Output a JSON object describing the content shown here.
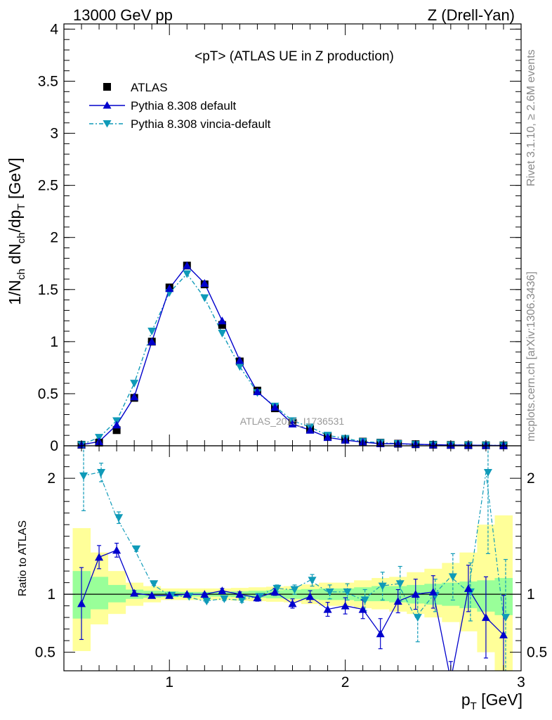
{
  "header": {
    "left": "13000 GeV pp",
    "right": "Z (Drell-Yan)"
  },
  "side_texts": {
    "rivet": "Rivet 3.1.10, ≥ 2.6M events",
    "mcplots": "mcplots.cern.ch [arXiv:1306.3436]"
  },
  "colors": {
    "atlas": "#000000",
    "default": "#0000cc",
    "vincia": "#0f9ab8",
    "band_inner": "#99ff99",
    "band_outer": "#ffff99",
    "watermark": "#999999"
  },
  "chart_data": [
    {
      "type": "line",
      "title": "<pT> (ATLAS UE in Z production)",
      "xlabel": "",
      "ylabel": "1/N_ch dN_ch/dp_T [GeV]",
      "watermark": "ATLAS_2019_I1736531",
      "xlim": [
        0.4,
        3.0
      ],
      "ylim": [
        0,
        4.05
      ],
      "yticks": [
        "0",
        "0.5",
        "1",
        "1.5",
        "2",
        "2.5",
        "3",
        "3.5",
        "4"
      ],
      "ytick_values": [
        0,
        0.5,
        1,
        1.5,
        2,
        2.5,
        3,
        3.5,
        4
      ],
      "legend_position": "top-left",
      "x": [
        0.5,
        0.6,
        0.7,
        0.8,
        0.9,
        1.0,
        1.1,
        1.2,
        1.3,
        1.4,
        1.5,
        1.6,
        1.7,
        1.8,
        1.9,
        2.0,
        2.1,
        2.2,
        2.3,
        2.4,
        2.5,
        2.6,
        2.7,
        2.8,
        2.9
      ],
      "series": [
        {
          "name": "ATLAS",
          "marker": "square",
          "values": [
            0.01,
            0.03,
            0.15,
            0.46,
            1.0,
            1.52,
            1.73,
            1.55,
            1.16,
            0.81,
            0.53,
            0.36,
            0.23,
            0.16,
            0.09,
            0.06,
            0.04,
            0.03,
            0.02,
            0.015,
            0.01,
            0.008,
            0.006,
            0.005,
            0.004
          ]
        },
        {
          "name": "Pythia 8.308 default",
          "marker": "triangle-up",
          "line": "solid",
          "values": [
            0.01,
            0.04,
            0.2,
            0.47,
            1.0,
            1.51,
            1.73,
            1.56,
            1.2,
            0.82,
            0.52,
            0.37,
            0.21,
            0.15,
            0.08,
            0.055,
            0.035,
            0.02,
            0.02,
            0.015,
            0.01,
            0.007,
            0.006,
            0.004,
            0.003
          ]
        },
        {
          "name": "Pythia 8.308 vincia-default",
          "marker": "triangle-down",
          "line": "dashdot",
          "values": [
            0.01,
            0.08,
            0.24,
            0.6,
            1.1,
            1.47,
            1.65,
            1.42,
            1.08,
            0.76,
            0.51,
            0.38,
            0.24,
            0.18,
            0.1,
            0.07,
            0.04,
            0.03,
            0.02,
            0.012,
            0.01,
            0.008,
            0.006,
            0.005,
            0.003
          ]
        }
      ]
    },
    {
      "type": "line",
      "xlabel": "p_T [GeV]",
      "ylabel": "Ratio to ATLAS",
      "xlim": [
        0.4,
        3.0
      ],
      "ylim": [
        0.34,
        2.28
      ],
      "xticks": [
        "1",
        "2",
        "3"
      ],
      "xtick_values": [
        1,
        2,
        3
      ],
      "yticks": [
        "0.5",
        "1",
        "2"
      ],
      "ytick_values": [
        0.5,
        1,
        2
      ],
      "reference_line": 1,
      "x": [
        0.5,
        0.6,
        0.7,
        0.8,
        0.9,
        1.0,
        1.1,
        1.2,
        1.3,
        1.4,
        1.5,
        1.6,
        1.7,
        1.8,
        1.9,
        2.0,
        2.1,
        2.2,
        2.3,
        2.4,
        2.5,
        2.6,
        2.7,
        2.8,
        2.9
      ],
      "bands": {
        "inner": [
          [
            0.79,
            1.2
          ],
          [
            0.87,
            1.15
          ],
          [
            0.93,
            1.08
          ],
          [
            0.96,
            1.04
          ],
          [
            0.97,
            1.03
          ],
          [
            0.975,
            1.025
          ],
          [
            0.98,
            1.02
          ],
          [
            0.98,
            1.02
          ],
          [
            0.98,
            1.02
          ],
          [
            0.975,
            1.025
          ],
          [
            0.97,
            1.03
          ],
          [
            0.965,
            1.035
          ],
          [
            0.96,
            1.04
          ],
          [
            0.955,
            1.045
          ],
          [
            0.95,
            1.05
          ],
          [
            0.95,
            1.05
          ],
          [
            0.94,
            1.06
          ],
          [
            0.94,
            1.07
          ],
          [
            0.93,
            1.07
          ],
          [
            0.92,
            1.08
          ],
          [
            0.91,
            1.09
          ],
          [
            0.9,
            1.1
          ],
          [
            0.88,
            1.11
          ],
          [
            0.85,
            1.12
          ],
          [
            0.82,
            1.14
          ]
        ],
        "outer": [
          [
            0.51,
            1.57
          ],
          [
            0.74,
            1.36
          ],
          [
            0.83,
            1.2
          ],
          [
            0.9,
            1.1
          ],
          [
            0.93,
            1.07
          ],
          [
            0.95,
            1.05
          ],
          [
            0.95,
            1.05
          ],
          [
            0.95,
            1.05
          ],
          [
            0.95,
            1.05
          ],
          [
            0.945,
            1.055
          ],
          [
            0.94,
            1.06
          ],
          [
            0.935,
            1.065
          ],
          [
            0.93,
            1.07
          ],
          [
            0.915,
            1.085
          ],
          [
            0.9,
            1.1
          ],
          [
            0.9,
            1.1
          ],
          [
            0.88,
            1.12
          ],
          [
            0.87,
            1.14
          ],
          [
            0.85,
            1.15
          ],
          [
            0.83,
            1.19
          ],
          [
            0.8,
            1.22
          ],
          [
            0.76,
            1.27
          ],
          [
            0.68,
            1.36
          ],
          [
            0.5,
            1.6
          ],
          [
            0.34,
            1.68
          ]
        ]
      },
      "series": [
        {
          "name": "Pythia 8.308 default",
          "values": [
            0.92,
            1.32,
            1.38,
            1.01,
            0.99,
            0.99,
            1.0,
            1.0,
            1.03,
            1.0,
            0.97,
            1.02,
            0.92,
            0.98,
            0.87,
            0.9,
            0.87,
            0.66,
            0.94,
            1.0,
            1.02,
            0.26,
            1.05,
            0.8,
            0.65
          ],
          "errors": [
            0.31,
            0.1,
            0.06,
            0.02,
            0.01,
            0.01,
            0.01,
            0.01,
            0.02,
            0.02,
            0.03,
            0.03,
            0.04,
            0.05,
            0.06,
            0.07,
            0.08,
            0.13,
            0.1,
            0.13,
            0.14,
            0.16,
            0.2,
            0.35,
            0.34
          ]
        },
        {
          "name": "Pythia 8.308 vincia-default",
          "values": [
            2.02,
            2.05,
            1.66,
            1.39,
            1.09,
            0.99,
            0.98,
            0.94,
            0.96,
            0.95,
            0.98,
            1.05,
            1.04,
            1.12,
            1.02,
            1.02,
            0.95,
            1.07,
            1.09,
            0.8,
            0.99,
            1.15,
            1.02,
            2.05,
            0.8
          ],
          "errors": [
            0.3,
            0.08,
            0.05,
            0.02,
            0.015,
            0.01,
            0.01,
            0.01,
            0.015,
            0.02,
            0.025,
            0.03,
            0.04,
            0.05,
            0.06,
            0.07,
            0.09,
            0.12,
            0.15,
            0.21,
            0.14,
            0.2,
            0.25,
            0.7,
            0.5
          ]
        }
      ]
    }
  ]
}
